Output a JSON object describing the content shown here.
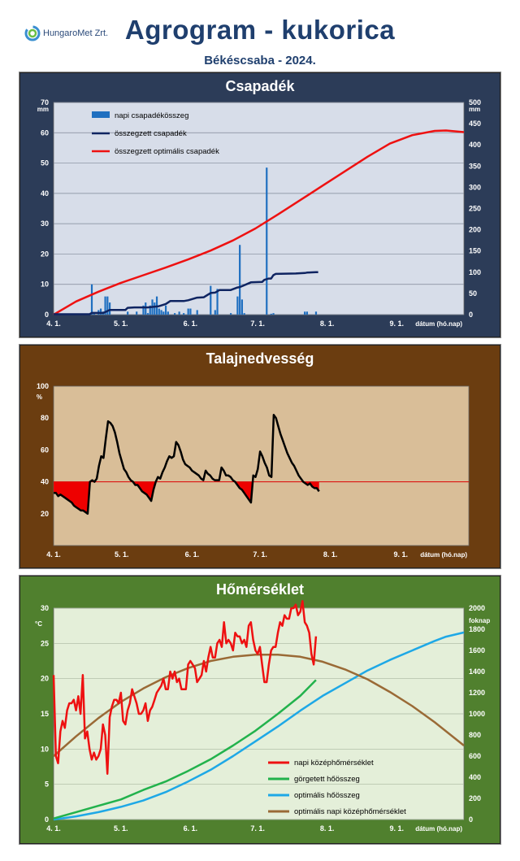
{
  "logo": {
    "text": "HungaroMet Zrt."
  },
  "header": {
    "title": "Agrogram - kukorica",
    "subtitle": "Békéscsaba - 2024."
  },
  "x_axis": {
    "ticks": [
      "4. 1.",
      "5. 1.",
      "6. 1.",
      "7. 1.",
      "8. 1.",
      "9. 1."
    ],
    "label": "dátum (hó.nap)",
    "day_ticks": [
      0,
      30,
      61,
      91,
      122,
      153
    ],
    "day_max": 183
  },
  "colors": {
    "precip_bg": "#2c3c58",
    "precip_plot": "#d7dde9",
    "soil_bg": "#6b3d10",
    "soil_plot": "#d9be98",
    "temp_bg": "#50802e",
    "temp_plot": "#e4efd9"
  },
  "chart_data": [
    {
      "type": "bar+line",
      "title": "Csapadék",
      "ylabel_left": "mm",
      "ylabel_right": "mm",
      "ylim_left": [
        0,
        70
      ],
      "yticks_left": [
        0,
        10,
        20,
        30,
        40,
        50,
        60,
        70
      ],
      "ylim_right": [
        0,
        500
      ],
      "yticks_right": [
        0,
        50,
        100,
        150,
        200,
        250,
        300,
        350,
        400,
        450,
        500
      ],
      "legend": [
        "napi csapadékösszeg",
        "összegzett csapadék",
        "összegzett optimális csapadék"
      ],
      "series_colors": [
        "#1f6fc0",
        "#0f2461",
        "#ee1111"
      ],
      "daily_bars": {
        "day": [
          8,
          17,
          18,
          20,
          21,
          22,
          23,
          24,
          25,
          33,
          37,
          40,
          41,
          42,
          43,
          44,
          45,
          46,
          47,
          48,
          49,
          50,
          51,
          54,
          56,
          58,
          60,
          61,
          64,
          70,
          72,
          73,
          79,
          82,
          83,
          84,
          85,
          95,
          97,
          98,
          112,
          112,
          113,
          117
        ],
        "mm": [
          0.3,
          10,
          0.5,
          1.5,
          2,
          1,
          6,
          6,
          4,
          1,
          1,
          3,
          4,
          0.5,
          3,
          5,
          4,
          6,
          2,
          1.5,
          1,
          3,
          1,
          0.5,
          1,
          0.5,
          2,
          2,
          1.5,
          9.5,
          1.5,
          8.5,
          0.5,
          6,
          23,
          5,
          0.5,
          48.5,
          0.3,
          0.5,
          0.5,
          1,
          1,
          1
        ]
      },
      "cumulative": {
        "day": [
          0,
          16,
          17,
          22,
          23,
          25,
          32,
          33,
          36,
          42,
          47,
          50,
          52,
          58,
          60,
          62,
          64,
          67,
          70,
          72,
          74,
          79,
          82,
          83,
          84,
          88,
          93,
          94,
          96,
          97,
          98,
          99,
          108,
          112,
          113,
          117,
          118
        ],
        "mm": [
          1,
          1,
          4,
          4,
          6,
          11,
          11,
          16,
          17,
          17,
          20,
          25,
          32,
          32,
          34,
          37,
          40,
          41,
          51,
          52,
          58,
          58,
          64,
          65,
          67,
          76,
          77,
          82,
          85,
          85,
          93,
          96,
          97,
          98,
          99,
          100,
          100
        ]
      },
      "optimal_cumulative": {
        "day": [
          0,
          10,
          20,
          30,
          40,
          50,
          60,
          70,
          80,
          90,
          100,
          110,
          120,
          130,
          140,
          150,
          160,
          170,
          175,
          183
        ],
        "mm": [
          0,
          31,
          54,
          75,
          93,
          111,
          130,
          151,
          175,
          203,
          236,
          270,
          304,
          338,
          372,
          403,
          423,
          433,
          434,
          430
        ]
      }
    },
    {
      "type": "line",
      "title": "Talajnedvesség",
      "ylabel": "%",
      "ylim": [
        0,
        100
      ],
      "yticks": [
        20,
        40,
        60,
        80,
        100
      ],
      "threshold": 40,
      "series_colors": [
        "#000000",
        "#dd0000"
      ],
      "soil_moisture": {
        "day": [
          0,
          1,
          2,
          3,
          5,
          6,
          7,
          8,
          9,
          10,
          11,
          12,
          13,
          14,
          15,
          16,
          17,
          18,
          19,
          20,
          21,
          22,
          23,
          24,
          25,
          26,
          27,
          28,
          29,
          30,
          31,
          32,
          33,
          34,
          35,
          36,
          37,
          38,
          39,
          40,
          41,
          42,
          43,
          44,
          45,
          46,
          47,
          48,
          49,
          50,
          51,
          52,
          53,
          54,
          55,
          56,
          57,
          58,
          59,
          60,
          61,
          62,
          63,
          64,
          65,
          66,
          67,
          68,
          69,
          70,
          71,
          72,
          73,
          74,
          75,
          76,
          77,
          78,
          79,
          80,
          81,
          82,
          83,
          84,
          85,
          86,
          87,
          88,
          89,
          90,
          91,
          92,
          93,
          94,
          95,
          96,
          97,
          98,
          99,
          100,
          101,
          102,
          103,
          104,
          105,
          106,
          107,
          108,
          109,
          110,
          111,
          112,
          113,
          114,
          115,
          116,
          117
        ],
        "pct": [
          33,
          33,
          31,
          32,
          30,
          29,
          28,
          27,
          25,
          24,
          23,
          22,
          22,
          21,
          20,
          40,
          41,
          40,
          42,
          50,
          56,
          55,
          67,
          78,
          77,
          75,
          71,
          65,
          58,
          53,
          48,
          46,
          43,
          41,
          40,
          38,
          38,
          36,
          34,
          33,
          32,
          30,
          28,
          35,
          40,
          43,
          42,
          46,
          49,
          53,
          56,
          55,
          56,
          65,
          63,
          59,
          54,
          51,
          50,
          49,
          47,
          46,
          45,
          44,
          42,
          41,
          47,
          45,
          44,
          42,
          41,
          41,
          41,
          49,
          47,
          44,
          44,
          43,
          41,
          40,
          38,
          36,
          35,
          33,
          31,
          29,
          27,
          44,
          43,
          48,
          59,
          56,
          52,
          49,
          44,
          43,
          82,
          80,
          75,
          70,
          66,
          62,
          58,
          55,
          52,
          50,
          47,
          44,
          42,
          40,
          39,
          38,
          39,
          37,
          36,
          36,
          34
        ]
      }
    },
    {
      "type": "line",
      "title": "Hőmérséklet",
      "ylabel_left": "°C",
      "ylabel_right": "foknap",
      "ylim_left": [
        0,
        30
      ],
      "yticks_left": [
        0,
        5,
        10,
        15,
        20,
        25,
        30
      ],
      "ylim_right": [
        0,
        2000
      ],
      "yticks_right": [
        0,
        200,
        400,
        600,
        800,
        1000,
        1200,
        1400,
        1600,
        1800,
        2000
      ],
      "legend": [
        "napi középhőmérséklet",
        "görgetett hőösszeg",
        "optimális hőösszeg",
        "optimális napi középhőmérséklet"
      ],
      "series_colors": [
        "#ee1111",
        "#22b24c",
        "#1ea8e6",
        "#9a6a36"
      ],
      "daily_mean": {
        "day": [
          0,
          1,
          2,
          3,
          4,
          5,
          6,
          7,
          8,
          9,
          10,
          11,
          12,
          13,
          14,
          15,
          16,
          17,
          18,
          19,
          20,
          21,
          22,
          23,
          24,
          25,
          26,
          27,
          28,
          29,
          30,
          31,
          32,
          33,
          34,
          35,
          36,
          37,
          38,
          39,
          40,
          41,
          42,
          43,
          44,
          45,
          46,
          47,
          48,
          49,
          50,
          51,
          52,
          53,
          54,
          55,
          56,
          57,
          58,
          59,
          60,
          61,
          62,
          63,
          64,
          65,
          66,
          67,
          68,
          69,
          70,
          71,
          72,
          73,
          74,
          75,
          76,
          77,
          78,
          79,
          80,
          81,
          82,
          83,
          84,
          85,
          86,
          87,
          88,
          89,
          90,
          91,
          92,
          93,
          94,
          95,
          96,
          97,
          98,
          99,
          100,
          101,
          102,
          103,
          104,
          105,
          106,
          107,
          108,
          109,
          110,
          111,
          112,
          113,
          114,
          115,
          116,
          117
        ],
        "temp": [
          20.5,
          9,
          8,
          12.5,
          14,
          13,
          15.5,
          16.5,
          16.5,
          17,
          15.5,
          17.5,
          15,
          20.5,
          11.5,
          12.5,
          10,
          8.5,
          9.5,
          8.5,
          9,
          10,
          13.5,
          12,
          6.5,
          14.5,
          16,
          17,
          17,
          16.5,
          18,
          14,
          13.5,
          15.5,
          16.5,
          18.5,
          17.5,
          16.5,
          15,
          15,
          15.5,
          16.5,
          14,
          15.5,
          16,
          17,
          18,
          18.5,
          19,
          20,
          18.5,
          18.5,
          21,
          20,
          21,
          19.5,
          20,
          18.5,
          18.5,
          18.5,
          22,
          22.5,
          22,
          21.5,
          19.5,
          20,
          20.5,
          22.5,
          21,
          23,
          24.5,
          23,
          23,
          25,
          25.5,
          24.5,
          28,
          25,
          25.5,
          25,
          24,
          26.5,
          26,
          26,
          25,
          25.5,
          24.5,
          27.5,
          28,
          25.5,
          24,
          23.5,
          24.5,
          22,
          19.5,
          19.5,
          22,
          24,
          24.5,
          24.5,
          26.5,
          28,
          27.5,
          29,
          28.5,
          28.5,
          30,
          30,
          30.5,
          29,
          29.5,
          31,
          28,
          27.5,
          26.5,
          23.5,
          22,
          26
        ]
      },
      "heat_sum": {
        "day": [
          0,
          10,
          20,
          30,
          40,
          50,
          60,
          70,
          80,
          90,
          100,
          110,
          117
        ],
        "foknap": [
          10,
          70,
          130,
          190,
          280,
          360,
          460,
          570,
          700,
          840,
          1000,
          1170,
          1320
        ]
      },
      "optimal_heat_sum": {
        "day": [
          0,
          10,
          20,
          30,
          40,
          50,
          60,
          70,
          80,
          90,
          100,
          110,
          120,
          130,
          140,
          150,
          160,
          170,
          175,
          183
        ],
        "foknap": [
          0,
          30,
          70,
          120,
          180,
          260,
          360,
          470,
          600,
          740,
          880,
          1030,
          1170,
          1290,
          1410,
          1510,
          1600,
          1690,
          1730,
          1770
        ]
      },
      "optimal_daily_mean": {
        "day": [
          0,
          10,
          20,
          30,
          40,
          50,
          60,
          70,
          80,
          90,
          100,
          110,
          120,
          130,
          140,
          150,
          160,
          170,
          183
        ],
        "temp": [
          9,
          11.8,
          14.4,
          16.7,
          18.6,
          20.2,
          21.5,
          22.5,
          23.1,
          23.4,
          23.4,
          23.1,
          22.4,
          21.3,
          19.9,
          18.1,
          16.1,
          13.8,
          10.5
        ]
      }
    }
  ]
}
